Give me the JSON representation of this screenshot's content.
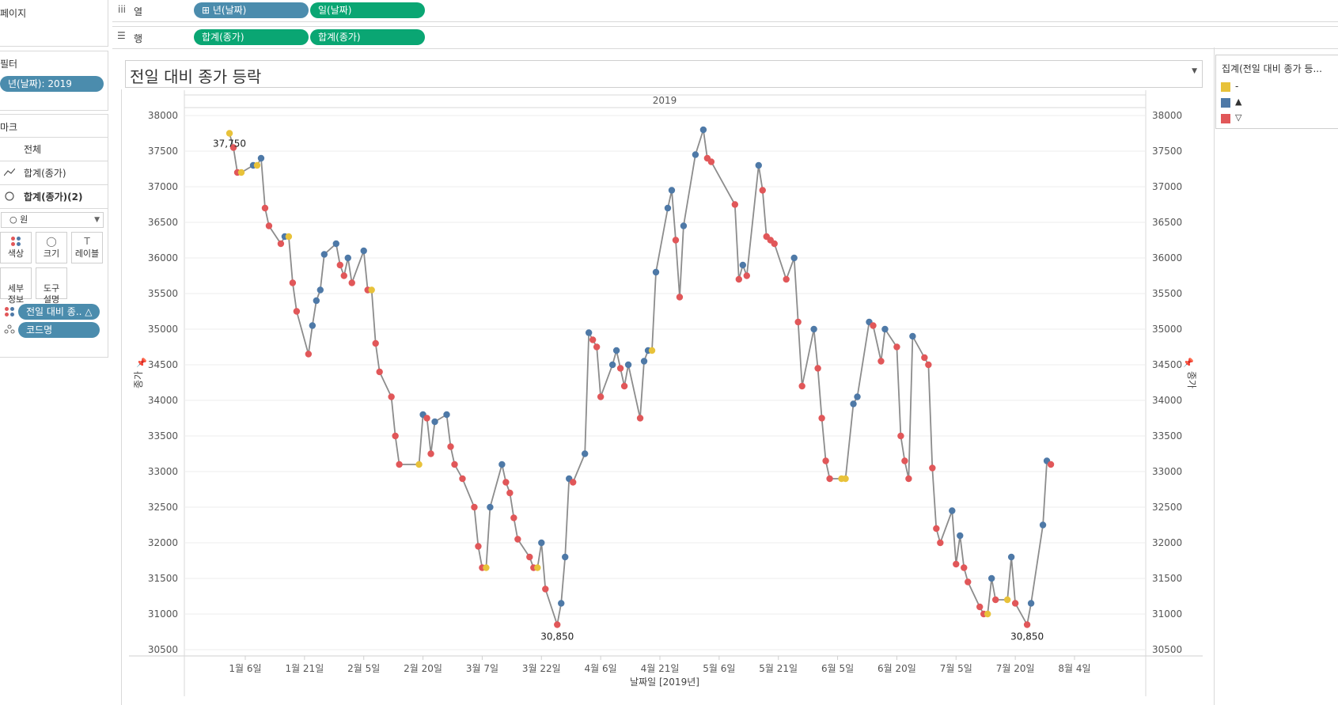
{
  "shelves": {
    "pages_label": "페이지",
    "columns_label": "열",
    "rows_label": "행",
    "columns_pills": [
      "⊞ 년(날짜)",
      "일(날짜)"
    ],
    "rows_pills": [
      "합계(종가)",
      "합계(종가)"
    ]
  },
  "filters": {
    "title": "필터",
    "pill": "년(날짜): 2019"
  },
  "marks": {
    "title": "마크",
    "items": [
      "전체",
      "합계(종가)",
      "합계(종가)(2)"
    ],
    "mark_type": "○ 원",
    "buttons": [
      "색상",
      "크기",
      "레이블",
      "세부\n정보",
      "도구\n설명"
    ],
    "pills": [
      "전일 대비 종.. △",
      "코드명"
    ]
  },
  "legend": {
    "title": "집계(전일 대비 종가 등...",
    "items": [
      {
        "label": "-",
        "color": "#e8c23a"
      },
      {
        "label": "▲",
        "color": "#4e79a7"
      },
      {
        "label": "▽",
        "color": "#e15759"
      }
    ]
  },
  "sheet": {
    "title": "전일 대비 종가 등락",
    "column_header": "2019",
    "xlabel": "날짜일 [2019년]",
    "ylabel": "종가"
  },
  "chart_data": {
    "type": "line",
    "y_ticks": [
      "38000",
      "37500",
      "37000",
      "36500",
      "36000",
      "35500",
      "35000",
      "34500",
      "34000",
      "33500",
      "33000",
      "32500",
      "32000",
      "31500",
      "31000",
      "30500"
    ],
    "x_ticks": [
      "1월 6일",
      "1월 21일",
      "2월 5일",
      "2월 20일",
      "3월 7일",
      "3월 22일",
      "4월 6일",
      "4월 21일",
      "5월 6일",
      "5월 21일",
      "6월 5일",
      "6월 20일",
      "7월 5일",
      "7월 20일",
      "8월 4일"
    ],
    "ylim": [
      30500,
      38000
    ],
    "annotations": [
      {
        "text": "37,750",
        "x": "2019-01-02",
        "y": 37750
      },
      {
        "text": "30,850",
        "x": "2019-03-26",
        "y": 30850
      },
      {
        "text": "30,850",
        "x": "2019-07-23",
        "y": 30850
      }
    ],
    "points": [
      [
        "2019-01-02",
        37750,
        "-"
      ],
      [
        "2019-01-03",
        37550,
        "▽"
      ],
      [
        "2019-01-04",
        37200,
        "▽"
      ],
      [
        "2019-01-05",
        37200,
        "-"
      ],
      [
        "2019-01-08",
        37300,
        "▲"
      ],
      [
        "2019-01-09",
        37300,
        "-"
      ],
      [
        "2019-01-10",
        37400,
        "▲"
      ],
      [
        "2019-01-11",
        36700,
        "▽"
      ],
      [
        "2019-01-12",
        36450,
        "▽"
      ],
      [
        "2019-01-15",
        36200,
        "▽"
      ],
      [
        "2019-01-16",
        36300,
        "▲"
      ],
      [
        "2019-01-17",
        36300,
        "-"
      ],
      [
        "2019-01-18",
        35650,
        "▽"
      ],
      [
        "2019-01-19",
        35250,
        "▽"
      ],
      [
        "2019-01-22",
        34650,
        "▽"
      ],
      [
        "2019-01-23",
        35050,
        "▲"
      ],
      [
        "2019-01-24",
        35400,
        "▲"
      ],
      [
        "2019-01-25",
        35550,
        "▲"
      ],
      [
        "2019-01-26",
        36050,
        "▲"
      ],
      [
        "2019-01-29",
        36200,
        "▲"
      ],
      [
        "2019-01-30",
        35900,
        "▽"
      ],
      [
        "2019-01-31",
        35750,
        "▽"
      ],
      [
        "2019-02-01",
        36000,
        "▲"
      ],
      [
        "2019-02-02",
        35650,
        "▽"
      ],
      [
        "2019-02-05",
        36100,
        "▲"
      ],
      [
        "2019-02-06",
        35550,
        "▽"
      ],
      [
        "2019-02-07",
        35550,
        "-"
      ],
      [
        "2019-02-08",
        34800,
        "▽"
      ],
      [
        "2019-02-09",
        34400,
        "▽"
      ],
      [
        "2019-02-12",
        34050,
        "▽"
      ],
      [
        "2019-02-13",
        33500,
        "▽"
      ],
      [
        "2019-02-14",
        33100,
        "▽"
      ],
      [
        "2019-02-19",
        33100,
        "-"
      ],
      [
        "2019-02-20",
        33800,
        "▲"
      ],
      [
        "2019-02-21",
        33750,
        "▽"
      ],
      [
        "2019-02-22",
        33250,
        "▽"
      ],
      [
        "2019-02-23",
        33700,
        "▲"
      ],
      [
        "2019-02-26",
        33800,
        "▲"
      ],
      [
        "2019-02-27",
        33350,
        "▽"
      ],
      [
        "2019-02-28",
        33100,
        "▽"
      ],
      [
        "2019-03-02",
        32900,
        "▽"
      ],
      [
        "2019-03-05",
        32500,
        "▽"
      ],
      [
        "2019-03-06",
        31950,
        "▽"
      ],
      [
        "2019-03-07",
        31650,
        "▽"
      ],
      [
        "2019-03-08",
        31650,
        "-"
      ],
      [
        "2019-03-09",
        32500,
        "▲"
      ],
      [
        "2019-03-12",
        33100,
        "▲"
      ],
      [
        "2019-03-13",
        32850,
        "▽"
      ],
      [
        "2019-03-14",
        32700,
        "▽"
      ],
      [
        "2019-03-15",
        32350,
        "▽"
      ],
      [
        "2019-03-16",
        32050,
        "▽"
      ],
      [
        "2019-03-19",
        31800,
        "▽"
      ],
      [
        "2019-03-20",
        31650,
        "▽"
      ],
      [
        "2019-03-21",
        31650,
        "-"
      ],
      [
        "2019-03-22",
        32000,
        "▲"
      ],
      [
        "2019-03-23",
        31350,
        "▽"
      ],
      [
        "2019-03-26",
        30850,
        "▽"
      ],
      [
        "2019-03-27",
        31150,
        "▲"
      ],
      [
        "2019-03-28",
        31800,
        "▲"
      ],
      [
        "2019-03-29",
        32900,
        "▲"
      ],
      [
        "2019-03-30",
        32850,
        "▽"
      ],
      [
        "2019-04-02",
        33250,
        "▲"
      ],
      [
        "2019-04-03",
        34950,
        "▲"
      ],
      [
        "2019-04-04",
        34850,
        "▽"
      ],
      [
        "2019-04-05",
        34750,
        "▽"
      ],
      [
        "2019-04-06",
        34050,
        "▽"
      ],
      [
        "2019-04-09",
        34500,
        "▲"
      ],
      [
        "2019-04-10",
        34700,
        "▲"
      ],
      [
        "2019-04-11",
        34450,
        "▽"
      ],
      [
        "2019-04-12",
        34200,
        "▽"
      ],
      [
        "2019-04-13",
        34500,
        "▲"
      ],
      [
        "2019-04-16",
        33750,
        "▽"
      ],
      [
        "2019-04-17",
        34550,
        "▲"
      ],
      [
        "2019-04-18",
        34700,
        "▲"
      ],
      [
        "2019-04-19",
        34700,
        "-"
      ],
      [
        "2019-04-20",
        35800,
        "▲"
      ],
      [
        "2019-04-23",
        36700,
        "▲"
      ],
      [
        "2019-04-24",
        36950,
        "▲"
      ],
      [
        "2019-04-25",
        36250,
        "▽"
      ],
      [
        "2019-04-26",
        35450,
        "▽"
      ],
      [
        "2019-04-27",
        36450,
        "▲"
      ],
      [
        "2019-04-30",
        37450,
        "▲"
      ],
      [
        "2019-05-02",
        37800,
        "▲"
      ],
      [
        "2019-05-03",
        37400,
        "▽"
      ],
      [
        "2019-05-04",
        37350,
        "▽"
      ],
      [
        "2019-05-10",
        36750,
        "▽"
      ],
      [
        "2019-05-11",
        35700,
        "▽"
      ],
      [
        "2019-05-12",
        35900,
        "▲"
      ],
      [
        "2019-05-13",
        35750,
        "▽"
      ],
      [
        "2019-05-16",
        37300,
        "▲"
      ],
      [
        "2019-05-17",
        36950,
        "▽"
      ],
      [
        "2019-05-18",
        36300,
        "▽"
      ],
      [
        "2019-05-19",
        36250,
        "▽"
      ],
      [
        "2019-05-20",
        36200,
        "▽"
      ],
      [
        "2019-05-23",
        35700,
        "▽"
      ],
      [
        "2019-05-25",
        36000,
        "▲"
      ],
      [
        "2019-05-26",
        35100,
        "▽"
      ],
      [
        "2019-05-27",
        34200,
        "▽"
      ],
      [
        "2019-05-30",
        35000,
        "▲"
      ],
      [
        "2019-05-31",
        34450,
        "▽"
      ],
      [
        "2019-06-01",
        33750,
        "▽"
      ],
      [
        "2019-06-02",
        33150,
        "▽"
      ],
      [
        "2019-06-03",
        32900,
        "▽"
      ],
      [
        "2019-06-06",
        32900,
        "-"
      ],
      [
        "2019-06-07",
        32900,
        "-"
      ],
      [
        "2019-06-09",
        33950,
        "▲"
      ],
      [
        "2019-06-10",
        34050,
        "▲"
      ],
      [
        "2019-06-13",
        35100,
        "▲"
      ],
      [
        "2019-06-14",
        35050,
        "▽"
      ],
      [
        "2019-06-16",
        34550,
        "▽"
      ],
      [
        "2019-06-17",
        35000,
        "▲"
      ],
      [
        "2019-06-20",
        34750,
        "▽"
      ],
      [
        "2019-06-21",
        33500,
        "▽"
      ],
      [
        "2019-06-22",
        33150,
        "▽"
      ],
      [
        "2019-06-23",
        32900,
        "▽"
      ],
      [
        "2019-06-24",
        34900,
        "▲"
      ],
      [
        "2019-06-27",
        34600,
        "▽"
      ],
      [
        "2019-06-28",
        34500,
        "▽"
      ],
      [
        "2019-06-29",
        33050,
        "▽"
      ],
      [
        "2019-06-30",
        32200,
        "▽"
      ],
      [
        "2019-07-01",
        32000,
        "▽"
      ],
      [
        "2019-07-04",
        32450,
        "▲"
      ],
      [
        "2019-07-05",
        31700,
        "▽"
      ],
      [
        "2019-07-06",
        32100,
        "▲"
      ],
      [
        "2019-07-07",
        31650,
        "▽"
      ],
      [
        "2019-07-08",
        31450,
        "▽"
      ],
      [
        "2019-07-11",
        31100,
        "▽"
      ],
      [
        "2019-07-12",
        31000,
        "▽"
      ],
      [
        "2019-07-13",
        31000,
        "-"
      ],
      [
        "2019-07-14",
        31500,
        "▲"
      ],
      [
        "2019-07-15",
        31200,
        "▽"
      ],
      [
        "2019-07-18",
        31200,
        "-"
      ],
      [
        "2019-07-19",
        31800,
        "▲"
      ],
      [
        "2019-07-20",
        31150,
        "▽"
      ],
      [
        "2019-07-23",
        30850,
        "▽"
      ],
      [
        "2019-07-24",
        31150,
        "▲"
      ],
      [
        "2019-07-27",
        32250,
        "▲"
      ],
      [
        "2019-07-28",
        33150,
        "▲"
      ],
      [
        "2019-07-29",
        33100,
        "▽"
      ]
    ]
  }
}
